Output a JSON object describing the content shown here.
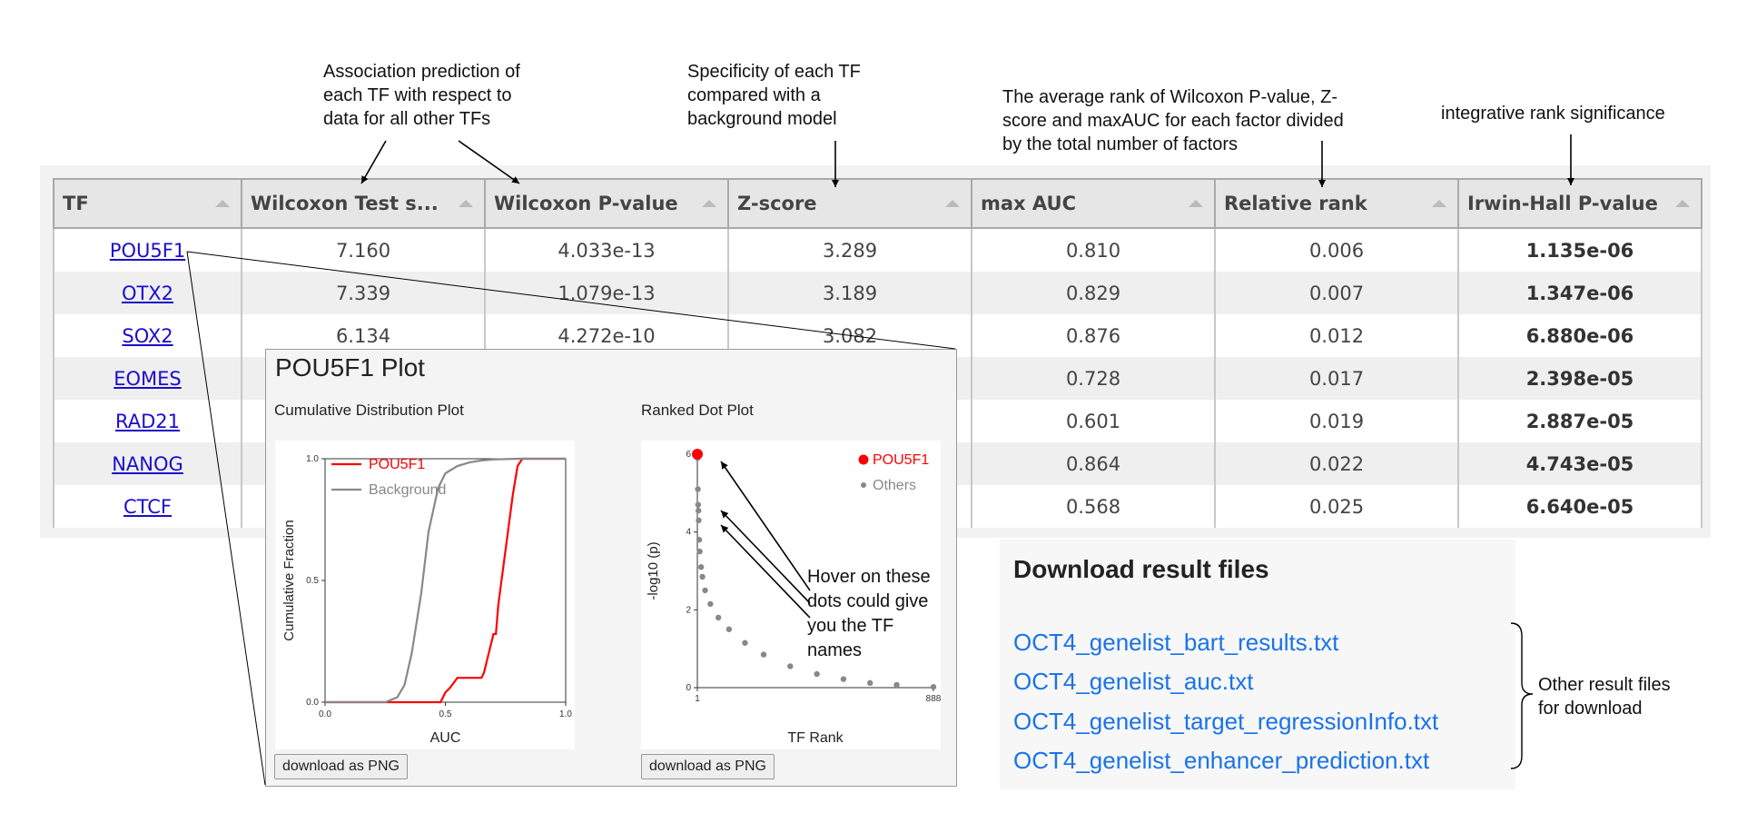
{
  "annotations": {
    "assoc": "Association prediction of\neach TF with respect to\ndata for all other TFs",
    "specificity": "Specificity of each TF\ncompared with a\nbackground model",
    "avg_rank": "The average rank of Wilcoxon P-value, Z-\nscore and maxAUC for each factor divided\nby the total number of factors",
    "irwin": "integrative rank significance",
    "hover": "Hover on these\ndots could give\nyou the TF\nnames",
    "other_files": "Other result files\nfor download"
  },
  "table": {
    "headers": [
      "TF",
      "Wilcoxon Test s...",
      "Wilcoxon P-value",
      "Z-score",
      "max AUC",
      "Relative rank",
      "Irwin-Hall P-value"
    ],
    "rows": [
      [
        "POU5F1",
        "7.160",
        "4.033e-13",
        "3.289",
        "0.810",
        "0.006",
        "1.135e-06"
      ],
      [
        "OTX2",
        "7.339",
        "1.079e-13",
        "3.189",
        "0.829",
        "0.007",
        "1.347e-06"
      ],
      [
        "SOX2",
        "6.134",
        "4.272e-10",
        "3.082",
        "0.876",
        "0.012",
        "6.880e-06"
      ],
      [
        "EOMES",
        "",
        "",
        "",
        "0.728",
        "0.017",
        "2.398e-05"
      ],
      [
        "RAD21",
        "",
        "",
        "",
        "0.601",
        "0.019",
        "2.887e-05"
      ],
      [
        "NANOG",
        "",
        "",
        "",
        "0.864",
        "0.022",
        "4.743e-05"
      ],
      [
        "CTCF",
        "",
        "",
        "",
        "0.568",
        "0.025",
        "6.640e-05"
      ]
    ]
  },
  "popup": {
    "title": "POU5F1 Plot",
    "cdf": {
      "subtitle": "Cumulative Distribution Plot",
      "ylabel": "Cumulative Fraction",
      "xlabel": "AUC",
      "xticks": [
        "0.0",
        "0.5",
        "1.0"
      ],
      "yticks": [
        "0.0",
        "0.5",
        "1.0"
      ],
      "legend": [
        "POU5F1",
        "Background"
      ],
      "colors": {
        "tf": "#ff0000",
        "background": "#888888"
      },
      "download_label": "download as PNG"
    },
    "dot": {
      "subtitle": "Ranked Dot Plot",
      "ylabel": "-log10 (p)",
      "xlabel": "TF Rank",
      "xticks": [
        "1",
        "888"
      ],
      "yticks": [
        "0",
        "2",
        "4",
        "6"
      ],
      "legend": [
        "POU5F1",
        "Others"
      ],
      "colors": {
        "tf": "#ff0000",
        "others": "#888888"
      },
      "download_label": "download as PNG"
    }
  },
  "downloads": {
    "title": "Download result files",
    "files": [
      "OCT4_genelist_bart_results.txt",
      "OCT4_genelist_auc.txt",
      "OCT4_genelist_target_regressionInfo.txt",
      "OCT4_genelist_enhancer_prediction.txt"
    ]
  },
  "chart_data": [
    {
      "type": "line",
      "title": "Cumulative Distribution Plot",
      "xlabel": "AUC",
      "ylabel": "Cumulative Fraction",
      "xlim": [
        0,
        1
      ],
      "ylim": [
        0,
        1
      ],
      "series": [
        {
          "name": "POU5F1",
          "x": [
            0.0,
            0.48,
            0.5,
            0.52,
            0.55,
            0.65,
            0.66,
            0.68,
            0.7,
            0.71,
            0.72,
            0.74,
            0.76,
            0.78,
            0.8,
            0.82,
            0.87,
            1.0
          ],
          "y": [
            0.0,
            0.0,
            0.04,
            0.06,
            0.1,
            0.1,
            0.12,
            0.2,
            0.28,
            0.28,
            0.4,
            0.55,
            0.7,
            0.85,
            0.97,
            1.0,
            1.0,
            1.0
          ]
        },
        {
          "name": "Background",
          "x": [
            0.0,
            0.25,
            0.3,
            0.33,
            0.36,
            0.4,
            0.43,
            0.47,
            0.5,
            0.55,
            0.6,
            0.65,
            0.7,
            0.8,
            1.0
          ],
          "y": [
            0.0,
            0.0,
            0.02,
            0.07,
            0.2,
            0.45,
            0.7,
            0.88,
            0.94,
            0.97,
            0.985,
            0.993,
            0.997,
            1.0,
            1.0
          ]
        }
      ]
    },
    {
      "type": "scatter",
      "title": "Ranked Dot Plot",
      "xlabel": "TF Rank",
      "ylabel": "-log10 (p)",
      "xlim": [
        1,
        888
      ],
      "ylim": [
        0,
        6
      ],
      "series": [
        {
          "name": "POU5F1",
          "x": [
            1
          ],
          "y": [
            6.0
          ]
        },
        {
          "name": "Others",
          "x": [
            2,
            3,
            4,
            5,
            6,
            8,
            10,
            15,
            20,
            30,
            50,
            80,
            120,
            180,
            250,
            350,
            450,
            550,
            650,
            750,
            888
          ],
          "y": [
            5.9,
            5.1,
            4.7,
            4.55,
            4.3,
            3.8,
            3.5,
            3.1,
            2.85,
            2.5,
            2.15,
            1.8,
            1.5,
            1.15,
            0.85,
            0.55,
            0.35,
            0.22,
            0.12,
            0.07,
            0.02
          ]
        }
      ]
    }
  ]
}
